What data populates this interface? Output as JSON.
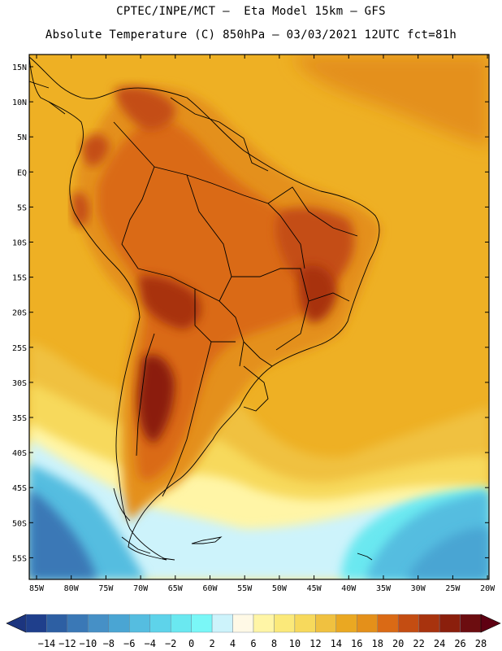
{
  "header": {
    "line1": "CPTEC/INPE/MCT –  Eta Model 15km – GFS",
    "line2": "Absolute Temperature (C) 850hPa – 03/03/2021 12UTC fct=81h"
  },
  "map": {
    "lat_labels": [
      "15N",
      "10N",
      "5N",
      "EQ",
      "5S",
      "10S",
      "15S",
      "20S",
      "25S",
      "30S",
      "35S",
      "40S",
      "45S",
      "50S",
      "55S"
    ],
    "lon_labels": [
      "85W",
      "80W",
      "75W",
      "70W",
      "65W",
      "60W",
      "55W",
      "50W",
      "45W",
      "40W",
      "35W",
      "30W",
      "25W",
      "20W"
    ]
  },
  "colorbar": {
    "labels": [
      "-14",
      "-12",
      "-10",
      "-8",
      "-6",
      "-4",
      "-2",
      "0",
      "2",
      "4",
      "6",
      "8",
      "10",
      "12",
      "14",
      "16",
      "18",
      "20",
      "22",
      "24",
      "26",
      "28"
    ],
    "colors": [
      "#1f3f8c",
      "#2d5fa3",
      "#3a78b6",
      "#4690c6",
      "#4aa5d3",
      "#55bde0",
      "#5ed3ea",
      "#6ae8f0",
      "#7af7f7",
      "#cdf3fb",
      "#fff9e6",
      "#fff5a6",
      "#fbe97a",
      "#f7d95c",
      "#f0c140",
      "#eaa822",
      "#e4901a",
      "#da6a15",
      "#c44d12",
      "#a8330e",
      "#8b1f0c",
      "#6c0d10"
    ],
    "end_left": "#1c357f",
    "end_right": "#5e0012"
  }
}
